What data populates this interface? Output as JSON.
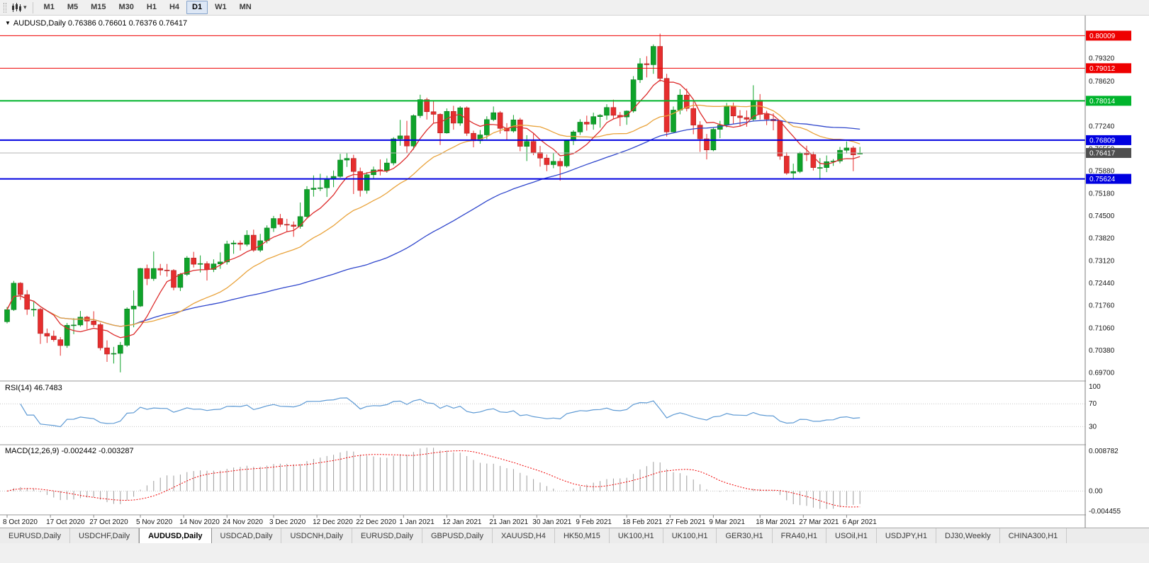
{
  "toolbar": {
    "chart_icon": "candlestick-chart-icon",
    "timeframes": [
      "M1",
      "M5",
      "M15",
      "M30",
      "H1",
      "H4",
      "D1",
      "W1",
      "MN"
    ],
    "active_timeframe": "D1"
  },
  "chart_header": {
    "title": "AUDUSD,Daily 0.76386 0.76601 0.76376 0.76417"
  },
  "chart_data": {
    "type": "candlestick",
    "symbol": "AUDUSD",
    "timeframe": "Daily",
    "ylim": [
      0.695,
      0.8045
    ],
    "price_axis_labels": [
      "0.79320",
      "0.78620",
      "0.77240",
      "0.76550",
      "0.75880",
      "0.75180",
      "0.74500",
      "0.73820",
      "0.73120",
      "0.72440",
      "0.71760",
      "0.71060",
      "0.70380",
      "0.69700"
    ],
    "x_axis_labels": [
      {
        "text": "8 Oct 2020",
        "i": 0
      },
      {
        "text": "17 Oct 2020",
        "i": 6.5
      },
      {
        "text": "27 Oct 2020",
        "i": 13
      },
      {
        "text": "5 Nov 2020",
        "i": 20
      },
      {
        "text": "14 Nov 2020",
        "i": 26.5
      },
      {
        "text": "24 Nov 2020",
        "i": 33
      },
      {
        "text": "3 Dec 2020",
        "i": 40
      },
      {
        "text": "12 Dec 2020",
        "i": 46.5
      },
      {
        "text": "22 Dec 2020",
        "i": 53
      },
      {
        "text": "1 Jan 2021",
        "i": 59.5
      },
      {
        "text": "12 Jan 2021",
        "i": 66
      },
      {
        "text": "21 Jan 2021",
        "i": 73
      },
      {
        "text": "30 Jan 2021",
        "i": 79.5
      },
      {
        "text": "9 Feb 2021",
        "i": 86
      },
      {
        "text": "18 Feb 2021",
        "i": 93
      },
      {
        "text": "27 Feb 2021",
        "i": 99.5
      },
      {
        "text": "9 Mar 2021",
        "i": 106
      },
      {
        "text": "18 Mar 2021",
        "i": 113
      },
      {
        "text": "27 Mar 2021",
        "i": 119.5
      },
      {
        "text": "6 Apr 2021",
        "i": 126
      }
    ],
    "hlines": [
      {
        "price": 0.80009,
        "label": "0.80009",
        "color": "#ee0000",
        "width": 1
      },
      {
        "price": 0.79012,
        "label": "0.79012",
        "color": "#ee0000",
        "width": 1
      },
      {
        "price": 0.78014,
        "label": "0.78014",
        "color": "#00b42c",
        "width": 2
      },
      {
        "price": 0.76809,
        "label": "0.76809",
        "color": "#0000e0",
        "width": 2
      },
      {
        "price": 0.75624,
        "label": "0.75624",
        "color": "#0000e0",
        "width": 2
      }
    ],
    "bid_line": {
      "price": 0.76417,
      "label": "0.76417",
      "color": "#4f4f4f"
    },
    "moving_averages": [
      {
        "name": "fast-ma",
        "period": 7,
        "color": "#dd2c2c"
      },
      {
        "name": "medium-ma",
        "period": 20,
        "color": "#e9a33c"
      },
      {
        "name": "slow-ma",
        "period": 55,
        "color": "#2f46cc"
      }
    ],
    "colors": {
      "up": "#0fa32a",
      "down": "#e62e2e",
      "up_stroke": "#0a7a1e",
      "down_stroke": "#ad1f1f"
    },
    "candles": [
      [
        0.7125,
        0.717,
        0.712,
        0.7162
      ],
      [
        0.7162,
        0.725,
        0.7158,
        0.7243
      ],
      [
        0.7243,
        0.7246,
        0.7192,
        0.7208
      ],
      [
        0.7208,
        0.7222,
        0.7146,
        0.7163
      ],
      [
        0.7163,
        0.7186,
        0.7141,
        0.7163
      ],
      [
        0.7163,
        0.7167,
        0.7057,
        0.7089
      ],
      [
        0.7089,
        0.7104,
        0.706,
        0.7081
      ],
      [
        0.7081,
        0.7098,
        0.7064,
        0.707
      ],
      [
        0.707,
        0.7078,
        0.7021,
        0.7052
      ],
      [
        0.7052,
        0.7121,
        0.7045,
        0.7114
      ],
      [
        0.7114,
        0.7136,
        0.7087,
        0.7115
      ],
      [
        0.7115,
        0.7158,
        0.711,
        0.7139
      ],
      [
        0.7139,
        0.7143,
        0.7102,
        0.7127
      ],
      [
        0.7127,
        0.7157,
        0.7108,
        0.7116
      ],
      [
        0.7116,
        0.7122,
        0.7037,
        0.7045
      ],
      [
        0.7045,
        0.7068,
        0.7002,
        0.7026
      ],
      [
        0.7026,
        0.7048,
        0.6997,
        0.7028
      ],
      [
        0.7028,
        0.7063,
        0.697,
        0.7053
      ],
      [
        0.7053,
        0.7169,
        0.7048,
        0.7164
      ],
      [
        0.7164,
        0.7221,
        0.7108,
        0.7173
      ],
      [
        0.7173,
        0.729,
        0.717,
        0.7288
      ],
      [
        0.7288,
        0.73,
        0.7237,
        0.7257
      ],
      [
        0.7257,
        0.734,
        0.725,
        0.7288
      ],
      [
        0.7288,
        0.7302,
        0.7267,
        0.7283
      ],
      [
        0.7283,
        0.7302,
        0.7263,
        0.7282
      ],
      [
        0.7282,
        0.7286,
        0.7221,
        0.723
      ],
      [
        0.723,
        0.7274,
        0.7219,
        0.727
      ],
      [
        0.727,
        0.7326,
        0.7265,
        0.732
      ],
      [
        0.732,
        0.7339,
        0.7291,
        0.7301
      ],
      [
        0.7301,
        0.7328,
        0.7276,
        0.7303
      ],
      [
        0.7303,
        0.731,
        0.7251,
        0.7285
      ],
      [
        0.7285,
        0.7316,
        0.7277,
        0.7302
      ],
      [
        0.7302,
        0.7337,
        0.7287,
        0.7308
      ],
      [
        0.7308,
        0.7373,
        0.73,
        0.7363
      ],
      [
        0.7363,
        0.7374,
        0.7333,
        0.7366
      ],
      [
        0.7366,
        0.7374,
        0.7343,
        0.7362
      ],
      [
        0.7362,
        0.7405,
        0.7356,
        0.739
      ],
      [
        0.739,
        0.7407,
        0.7339,
        0.7344
      ],
      [
        0.7344,
        0.7394,
        0.7338,
        0.7373
      ],
      [
        0.7373,
        0.742,
        0.7365,
        0.7412
      ],
      [
        0.7412,
        0.7449,
        0.74,
        0.7441
      ],
      [
        0.7441,
        0.7455,
        0.7415,
        0.7423
      ],
      [
        0.7423,
        0.744,
        0.74,
        0.7421
      ],
      [
        0.7421,
        0.7432,
        0.7385,
        0.7417
      ],
      [
        0.7417,
        0.749,
        0.741,
        0.7447
      ],
      [
        0.7447,
        0.754,
        0.7443,
        0.753
      ],
      [
        0.753,
        0.7573,
        0.7508,
        0.7534
      ],
      [
        0.7534,
        0.7578,
        0.7525,
        0.7535
      ],
      [
        0.7535,
        0.7572,
        0.7507,
        0.7561
      ],
      [
        0.7561,
        0.7588,
        0.7537,
        0.757
      ],
      [
        0.757,
        0.7639,
        0.7566,
        0.762
      ],
      [
        0.762,
        0.7642,
        0.7599,
        0.7625
      ],
      [
        0.7625,
        0.7636,
        0.7516,
        0.7585
      ],
      [
        0.7585,
        0.7597,
        0.7508,
        0.7527
      ],
      [
        0.7527,
        0.7583,
        0.7517,
        0.7575
      ],
      [
        0.7575,
        0.76,
        0.7562,
        0.759
      ],
      [
        0.759,
        0.7622,
        0.7573,
        0.7588
      ],
      [
        0.7588,
        0.7625,
        0.7581,
        0.7611
      ],
      [
        0.7611,
        0.769,
        0.7604,
        0.7685
      ],
      [
        0.7685,
        0.7743,
        0.7664,
        0.7694
      ],
      [
        0.7694,
        0.774,
        0.7642,
        0.7663
      ],
      [
        0.7663,
        0.776,
        0.7652,
        0.7756
      ],
      [
        0.7756,
        0.782,
        0.7749,
        0.7805
      ],
      [
        0.7805,
        0.7811,
        0.7744,
        0.7768
      ],
      [
        0.7768,
        0.78,
        0.7733,
        0.776
      ],
      [
        0.776,
        0.7763,
        0.7666,
        0.7703
      ],
      [
        0.7703,
        0.7778,
        0.7701,
        0.7769
      ],
      [
        0.7769,
        0.7786,
        0.7713,
        0.7733
      ],
      [
        0.7733,
        0.7785,
        0.7725,
        0.778
      ],
      [
        0.778,
        0.7784,
        0.7694,
        0.7702
      ],
      [
        0.7702,
        0.771,
        0.7659,
        0.7679
      ],
      [
        0.7679,
        0.7712,
        0.767,
        0.7697
      ],
      [
        0.7697,
        0.7754,
        0.7684,
        0.7744
      ],
      [
        0.7744,
        0.7784,
        0.7739,
        0.7765
      ],
      [
        0.7765,
        0.777,
        0.7701,
        0.7717
      ],
      [
        0.7717,
        0.7733,
        0.7682,
        0.7709
      ],
      [
        0.7709,
        0.7758,
        0.7704,
        0.7743
      ],
      [
        0.7743,
        0.7749,
        0.7647,
        0.7662
      ],
      [
        0.7662,
        0.7696,
        0.7617,
        0.7677
      ],
      [
        0.7677,
        0.7702,
        0.7635,
        0.7643
      ],
      [
        0.7643,
        0.7663,
        0.76,
        0.7626
      ],
      [
        0.7626,
        0.7637,
        0.7586,
        0.7606
      ],
      [
        0.7606,
        0.7642,
        0.7595,
        0.7616
      ],
      [
        0.7616,
        0.7626,
        0.7557,
        0.7602
      ],
      [
        0.7602,
        0.7682,
        0.7597,
        0.7679
      ],
      [
        0.7679,
        0.7711,
        0.7666,
        0.7706
      ],
      [
        0.7706,
        0.7745,
        0.7697,
        0.7736
      ],
      [
        0.7736,
        0.7756,
        0.771,
        0.773
      ],
      [
        0.773,
        0.7765,
        0.7713,
        0.7753
      ],
      [
        0.7753,
        0.7761,
        0.7719,
        0.7757
      ],
      [
        0.7757,
        0.7791,
        0.7743,
        0.7781
      ],
      [
        0.7781,
        0.7805,
        0.7745,
        0.7757
      ],
      [
        0.7757,
        0.7767,
        0.7724,
        0.7752
      ],
      [
        0.7752,
        0.7772,
        0.7728,
        0.777
      ],
      [
        0.777,
        0.7877,
        0.7765,
        0.7866
      ],
      [
        0.7866,
        0.7932,
        0.7856,
        0.7915
      ],
      [
        0.7915,
        0.7938,
        0.7873,
        0.7912
      ],
      [
        0.7912,
        0.7974,
        0.7884,
        0.7968
      ],
      [
        0.7968,
        0.8007,
        0.786,
        0.787
      ],
      [
        0.787,
        0.7884,
        0.7692,
        0.7706
      ],
      [
        0.7706,
        0.7784,
        0.7705,
        0.7773
      ],
      [
        0.7773,
        0.7837,
        0.776,
        0.7819
      ],
      [
        0.7819,
        0.7839,
        0.7769,
        0.7778
      ],
      [
        0.7778,
        0.7803,
        0.7699,
        0.7727
      ],
      [
        0.7727,
        0.7739,
        0.7645,
        0.7685
      ],
      [
        0.7685,
        0.77,
        0.7622,
        0.7651
      ],
      [
        0.7651,
        0.7721,
        0.7647,
        0.7714
      ],
      [
        0.7714,
        0.774,
        0.7687,
        0.7727
      ],
      [
        0.7727,
        0.7795,
        0.772,
        0.7785
      ],
      [
        0.7785,
        0.7796,
        0.7731,
        0.7755
      ],
      [
        0.7755,
        0.7773,
        0.7725,
        0.775
      ],
      [
        0.775,
        0.7772,
        0.7722,
        0.7745
      ],
      [
        0.7745,
        0.7849,
        0.7738,
        0.7803
      ],
      [
        0.7803,
        0.7822,
        0.7744,
        0.776
      ],
      [
        0.776,
        0.7771,
        0.7727,
        0.7745
      ],
      [
        0.7745,
        0.7763,
        0.7711,
        0.774
      ],
      [
        0.774,
        0.7742,
        0.7621,
        0.7632
      ],
      [
        0.7632,
        0.7644,
        0.7575,
        0.758
      ],
      [
        0.758,
        0.7609,
        0.7562,
        0.7585
      ],
      [
        0.7585,
        0.7645,
        0.758,
        0.764
      ],
      [
        0.764,
        0.7664,
        0.7617,
        0.7637
      ],
      [
        0.7637,
        0.7645,
        0.7588,
        0.7597
      ],
      [
        0.7597,
        0.7626,
        0.756,
        0.7597
      ],
      [
        0.7597,
        0.7634,
        0.7583,
        0.7615
      ],
      [
        0.7615,
        0.7623,
        0.7602,
        0.7617
      ],
      [
        0.7617,
        0.766,
        0.761,
        0.765
      ],
      [
        0.765,
        0.7677,
        0.764,
        0.7657
      ],
      [
        0.7657,
        0.7663,
        0.7586,
        0.7636
      ],
      [
        0.76386,
        0.76601,
        0.76376,
        0.76417
      ]
    ]
  },
  "rsi_panel": {
    "label": "RSI(14) 46.7483",
    "period": 14,
    "value": "46.7483",
    "axis_labels": [
      "100",
      "70",
      "30"
    ],
    "levels": [
      70,
      30
    ],
    "line_color": "#5e9ad4",
    "ylim": [
      2,
      105
    ]
  },
  "macd_panel": {
    "label": "MACD(12,26,9) -0.002442 -0.003287",
    "values": "-0.002442 -0.003287",
    "axis_labels": [
      {
        "text": "0.008782",
        "v": 0.008782
      },
      {
        "text": "0.00",
        "v": 0
      },
      {
        "text": "-0.004455",
        "v": -0.004455
      }
    ],
    "histogram_color": "#9c9c9c",
    "signal_color": "#f00000",
    "ylim": [
      -0.00476,
      0.00956
    ]
  },
  "tabs": {
    "items": [
      "EURUSD,Daily",
      "USDCHF,Daily",
      "AUDUSD,Daily",
      "USDCAD,Daily",
      "USDCNH,Daily",
      "EURUSD,Daily",
      "GBPUSD,Daily",
      "XAUUSD,H4",
      "HK50,M15",
      "UK100,H1",
      "UK100,H1",
      "GER30,H1",
      "FRA40,H1",
      "USOil,H1",
      "USDJPY,H1",
      "DJ30,Weekly",
      "CHINA300,H1"
    ],
    "active_index": 2
  }
}
